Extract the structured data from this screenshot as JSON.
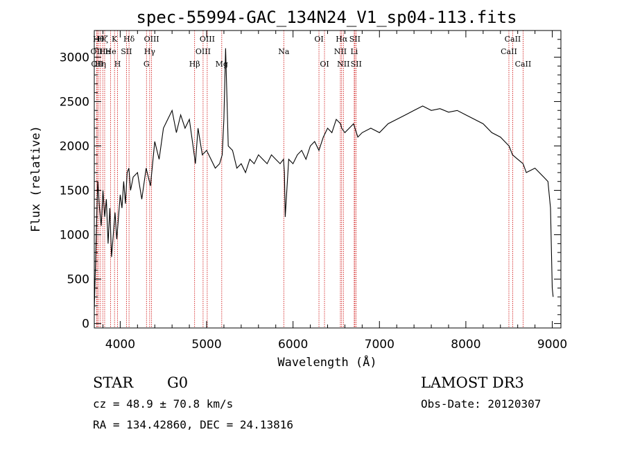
{
  "chart_data": {
    "type": "line",
    "title": "spec-55994-GAC_134N24_V1_sp04-113.fits",
    "xlabel": "Wavelength (Å)",
    "ylabel": "Flux (relative)",
    "xlim": [
      3700,
      9100
    ],
    "ylim": [
      -50,
      3300
    ],
    "x_ticks": [
      4000,
      5000,
      6000,
      7000,
      8000,
      9000
    ],
    "y_ticks": [
      0,
      500,
      1000,
      1500,
      2000,
      2500,
      3000
    ],
    "grid": false,
    "line_color": "#000000",
    "marker_color": "#cc0000",
    "series": [
      {
        "name": "spectrum",
        "x": [
          3700,
          3720,
          3740,
          3760,
          3780,
          3800,
          3820,
          3840,
          3860,
          3880,
          3900,
          3920,
          3940,
          3960,
          3980,
          4000,
          4020,
          4040,
          4060,
          4080,
          4100,
          4120,
          4150,
          4200,
          4250,
          4300,
          4350,
          4400,
          4450,
          4500,
          4550,
          4600,
          4650,
          4700,
          4750,
          4800,
          4850,
          4870,
          4900,
          4950,
          5000,
          5050,
          5100,
          5150,
          5180,
          5200,
          5220,
          5250,
          5300,
          5350,
          5400,
          5450,
          5500,
          5550,
          5600,
          5650,
          5700,
          5750,
          5800,
          5850,
          5890,
          5900,
          5910,
          5950,
          6000,
          6050,
          6100,
          6150,
          6200,
          6250,
          6300,
          6350,
          6400,
          6450,
          6500,
          6550,
          6563,
          6600,
          6650,
          6700,
          6750,
          6800,
          6900,
          7000,
          7100,
          7200,
          7300,
          7400,
          7500,
          7600,
          7700,
          7800,
          7900,
          8000,
          8100,
          8200,
          8300,
          8400,
          8500,
          8540,
          8600,
          8662,
          8700,
          8800,
          8900,
          8950,
          8980,
          9000,
          9010
        ],
        "y": [
          150,
          900,
          1600,
          1300,
          1100,
          1500,
          1200,
          1400,
          900,
          1300,
          750,
          1000,
          1250,
          950,
          1200,
          1450,
          1300,
          1600,
          1350,
          1700,
          1750,
          1500,
          1650,
          1700,
          1400,
          1750,
          1550,
          2050,
          1850,
          2200,
          2300,
          2400,
          2150,
          2350,
          2200,
          2300,
          1950,
          1800,
          2200,
          1900,
          1950,
          1850,
          1750,
          1800,
          1900,
          2300,
          3100,
          2000,
          1950,
          1750,
          1800,
          1700,
          1850,
          1800,
          1900,
          1850,
          1800,
          1900,
          1850,
          1800,
          1850,
          1700,
          1200,
          1850,
          1800,
          1900,
          1950,
          1850,
          2000,
          2050,
          1950,
          2100,
          2200,
          2150,
          2300,
          2250,
          2200,
          2150,
          2200,
          2250,
          2100,
          2150,
          2200,
          2150,
          2250,
          2300,
          2350,
          2400,
          2450,
          2400,
          2420,
          2380,
          2400,
          2350,
          2300,
          2250,
          2150,
          2100,
          2000,
          1900,
          1850,
          1800,
          1700,
          1750,
          1650,
          1600,
          1300,
          400,
          300
        ]
      }
    ],
    "line_markers": [
      {
        "x": 3727,
        "label": "OII",
        "row": 2
      },
      {
        "x": 3734,
        "label": "OII",
        "row": 3
      },
      {
        "x": 3750,
        "label": "Hθ",
        "row": 1
      },
      {
        "x": 3771,
        "label": "Hη",
        "row": 3
      },
      {
        "x": 3798,
        "label": "Hζ",
        "row": 1
      },
      {
        "x": 3820,
        "label": "He",
        "row": 2
      },
      {
        "x": 3889,
        "label": "He",
        "row": 2
      },
      {
        "x": 3934,
        "label": "K",
        "row": 1
      },
      {
        "x": 3969,
        "label": "H",
        "row": 3
      },
      {
        "x": 4072,
        "label": "SII",
        "row": 2
      },
      {
        "x": 4102,
        "label": "Hδ",
        "row": 1
      },
      {
        "x": 4304,
        "label": "G",
        "row": 3
      },
      {
        "x": 4341,
        "label": "Hγ",
        "row": 2
      },
      {
        "x": 4363,
        "label": "OIII",
        "row": 1
      },
      {
        "x": 4861,
        "label": "Hβ",
        "row": 3
      },
      {
        "x": 4959,
        "label": "OIII",
        "row": 2
      },
      {
        "x": 5007,
        "label": "OIII",
        "row": 1
      },
      {
        "x": 5175,
        "label": "Mg",
        "row": 3
      },
      {
        "x": 5893,
        "label": "Na",
        "row": 2
      },
      {
        "x": 6300,
        "label": "OI",
        "row": 1
      },
      {
        "x": 6364,
        "label": "OI",
        "row": 3
      },
      {
        "x": 6548,
        "label": "NII",
        "row": 2
      },
      {
        "x": 6563,
        "label": "Hα",
        "row": 1
      },
      {
        "x": 6583,
        "label": "NII",
        "row": 3
      },
      {
        "x": 6708,
        "label": "Li",
        "row": 2
      },
      {
        "x": 6716,
        "label": "SII",
        "row": 1
      },
      {
        "x": 6731,
        "label": "SII",
        "row": 3
      },
      {
        "x": 8498,
        "label": "CaII",
        "row": 2
      },
      {
        "x": 8542,
        "label": "CaII",
        "row": 1
      },
      {
        "x": 8662,
        "label": "CaII",
        "row": 3
      }
    ]
  },
  "info": {
    "object_class": "STAR",
    "subclass": "G0",
    "survey": "LAMOST DR3",
    "cz": "cz = 48.9 ± 70.8 km/s",
    "obs_date": "Obs-Date: 20120307",
    "coords": "RA = 134.42860, DEC =  24.13816"
  }
}
